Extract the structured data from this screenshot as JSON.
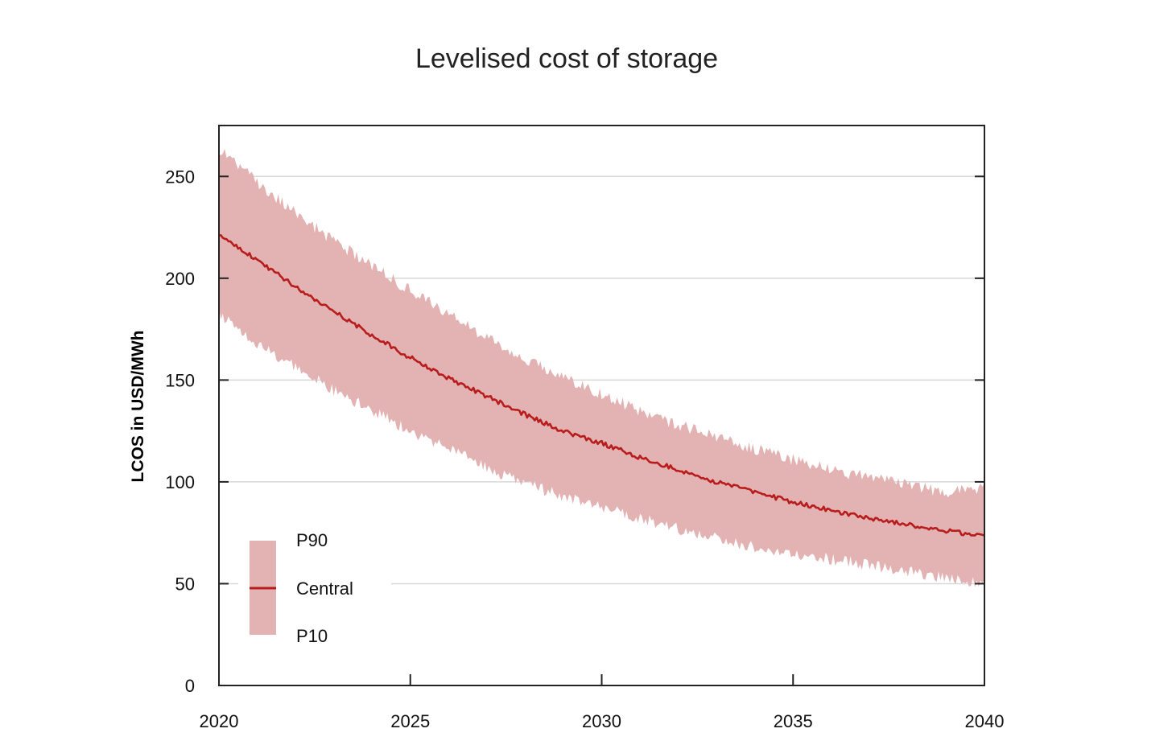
{
  "chart_data": {
    "type": "area",
    "title": "Levelised cost of storage",
    "xlabel": "",
    "ylabel": "LCOS in USD/MWh",
    "xlim": [
      2020,
      2040
    ],
    "ylim": [
      0,
      275
    ],
    "x_ticks": [
      2020,
      2025,
      2030,
      2035,
      2040
    ],
    "y_ticks": [
      0,
      50,
      100,
      150,
      200,
      250
    ],
    "grid": "horizontal",
    "legend_position": "bottom-left",
    "colors": {
      "band": "#e3b2b2",
      "central": "#b81c1c",
      "grid": "#d8d8d8",
      "axis": "#222222"
    },
    "legend": {
      "upper_label": "P90",
      "central_label": "Central",
      "lower_label": "P10"
    },
    "x": [
      2020,
      2021,
      2022,
      2023,
      2024,
      2025,
      2026,
      2027,
      2028,
      2029,
      2030,
      2031,
      2032,
      2033,
      2034,
      2035,
      2036,
      2037,
      2038,
      2039,
      2040
    ],
    "series": [
      {
        "name": "P90",
        "values": [
          264,
          247,
          232,
          218,
          206,
          194,
          182,
          171,
          160,
          152,
          143,
          135,
          128,
          122,
          116,
          111,
          106,
          102,
          98,
          95,
          97
        ]
      },
      {
        "name": "Central",
        "values": [
          222,
          209,
          196,
          184,
          172,
          161,
          151,
          142,
          133,
          125,
          119,
          112,
          106,
          100,
          95,
          90,
          86,
          82,
          79,
          76,
          73
        ]
      },
      {
        "name": "P10",
        "values": [
          183,
          168,
          156,
          145,
          135,
          125,
          116,
          107,
          99,
          93,
          88,
          82,
          77,
          72,
          68,
          65,
          62,
          59,
          56,
          53,
          50
        ]
      }
    ]
  }
}
